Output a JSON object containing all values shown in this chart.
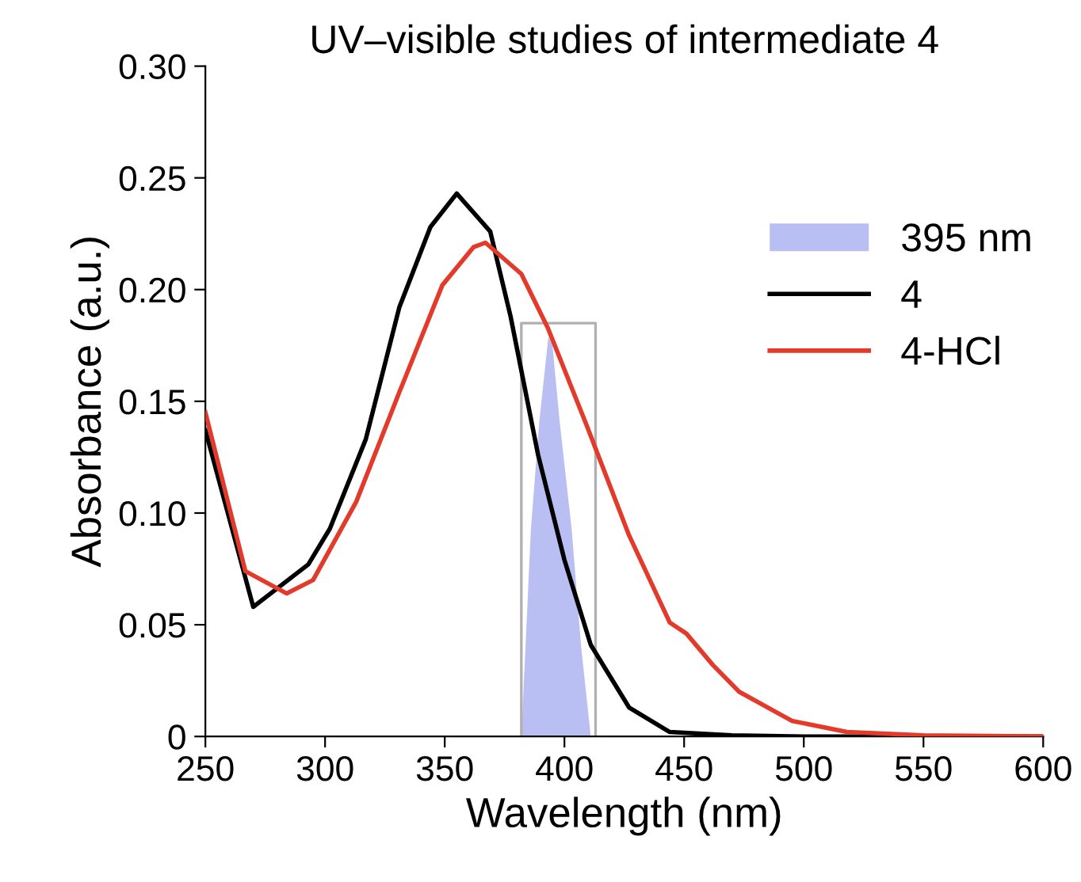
{
  "chart_data": {
    "type": "line",
    "title": "UV–visible studies of intermediate 4",
    "xlabel": "Wavelength (nm)",
    "ylabel": "Absorbance (a.u.)",
    "xlim": [
      250,
      600
    ],
    "ylim": [
      0,
      0.3
    ],
    "xticks": [
      250,
      300,
      350,
      400,
      450,
      500,
      550,
      600
    ],
    "yticks": [
      0,
      {
        "value": 0.05,
        "label": "0.05"
      },
      {
        "value": 0.1,
        "label": "0.10"
      },
      {
        "value": 0.15,
        "label": "0.15"
      },
      {
        "value": 0.2,
        "label": "0.20"
      },
      {
        "value": 0.25,
        "label": "0.25"
      },
      {
        "value": 0.3,
        "label": "0.30"
      }
    ],
    "grid": false,
    "legend": "top right",
    "marker": "none",
    "line_style": "solid",
    "series": [
      {
        "color": "#b0b0b0",
        "x": [
          382,
          382,
          413,
          413
        ],
        "values": [
          0,
          0.185,
          0.185,
          0
        ]
      },
      {
        "name": "395 nm",
        "type": "area",
        "color": "#b9bff3",
        "x": [
          382,
          386,
          389.5,
          393.3,
          395,
          398,
          403,
          407,
          411
        ],
        "values": [
          0,
          0.093,
          0.141,
          0.179,
          0.175,
          0.141,
          0.093,
          0.04,
          0
        ]
      },
      {
        "name": "4",
        "type": "line",
        "color": "#000000",
        "x": [
          250,
          270,
          293,
          302,
          317,
          331,
          344,
          355,
          369,
          377.5,
          389,
          400,
          411,
          427,
          444,
          470,
          500,
          600
        ],
        "values": [
          0.137,
          0.058,
          0.077,
          0.093,
          0.133,
          0.192,
          0.228,
          0.243,
          0.226,
          0.188,
          0.126,
          0.079,
          0.041,
          0.013,
          0.002,
          0.0005,
          0,
          0
        ]
      },
      {
        "name": "4-HCl",
        "type": "line",
        "color": "#e23b2c",
        "x": [
          250,
          266.7,
          284,
          295,
          313,
          331,
          349,
          362,
          367,
          382,
          393,
          409,
          427,
          444,
          451,
          462,
          473,
          495,
          518,
          550,
          600
        ],
        "values": [
          0.145,
          0.074,
          0.064,
          0.07,
          0.105,
          0.154,
          0.202,
          0.219,
          0.221,
          0.207,
          0.183,
          0.14,
          0.09,
          0.051,
          0.046,
          0.032,
          0.02,
          0.007,
          0.002,
          0.0005,
          0
        ]
      }
    ]
  }
}
